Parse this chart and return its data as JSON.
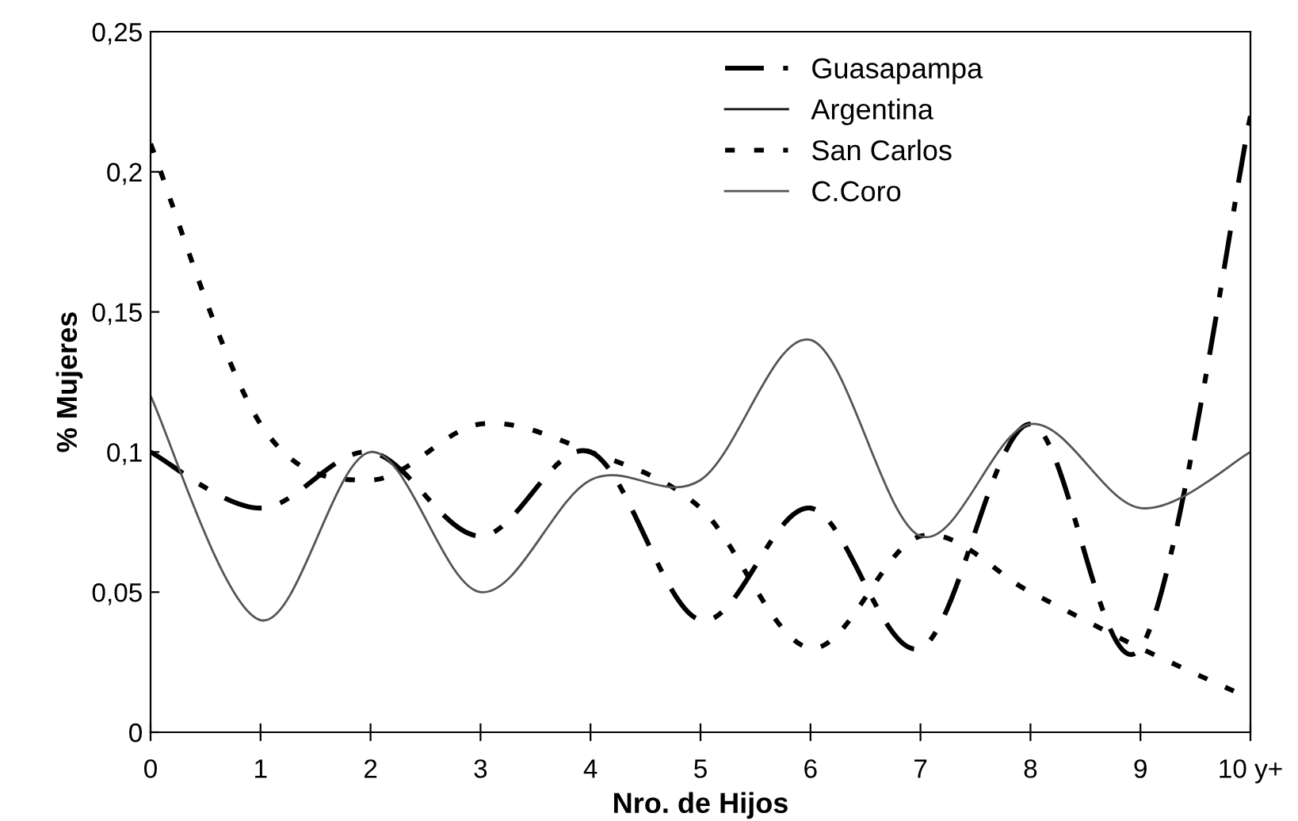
{
  "chart_data": {
    "type": "line",
    "xlabel": "Nro. de Hijos",
    "ylabel": "% Mujeres",
    "categories": [
      "0",
      "1",
      "2",
      "3",
      "4",
      "5",
      "6",
      "7",
      "8",
      "9",
      "10 y+"
    ],
    "series": [
      {
        "name": "Guasapampa",
        "color": "#000000",
        "line_style": "dashdot",
        "values": [
          0.1,
          0.08,
          0.1,
          0.07,
          0.1,
          0.04,
          0.08,
          0.03,
          0.11,
          0.03,
          0.22
        ]
      },
      {
        "name": "Argentina",
        "color": "#222222",
        "line_style": "solid",
        "values": [
          null,
          null,
          null,
          null,
          null,
          null,
          null,
          null,
          null,
          null,
          null
        ]
      },
      {
        "name": "San Carlos",
        "color": "#000000",
        "line_style": "dotted",
        "values": [
          0.21,
          0.11,
          0.09,
          0.11,
          0.1,
          0.08,
          0.03,
          0.07,
          0.05,
          0.03,
          0.012
        ]
      },
      {
        "name": "C.Coro",
        "color": "#555555",
        "line_style": "solid",
        "values": [
          0.12,
          0.04,
          0.1,
          0.05,
          0.09,
          0.09,
          0.14,
          0.07,
          0.11,
          0.08,
          0.1
        ]
      }
    ],
    "ylim": [
      0,
      0.25
    ],
    "yticks": [
      0,
      {
        "value": 0.05,
        "label": "0,05"
      },
      {
        "value": 0.1,
        "label": "0,1"
      },
      {
        "value": 0.15,
        "label": "0,15"
      },
      {
        "value": 0.2,
        "label": "0,2"
      },
      {
        "value": 0.25,
        "label": "0,25"
      }
    ],
    "grid": false,
    "legend": "top right",
    "marker": "none"
  }
}
